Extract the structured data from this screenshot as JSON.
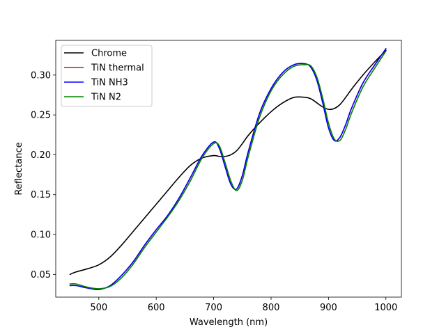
{
  "chart_data": {
    "type": "line",
    "title": "",
    "xlabel": "Wavelength (nm)",
    "ylabel": "Reflectance",
    "xlim": [
      425,
      1027
    ],
    "ylim": [
      0.0215,
      0.3435
    ],
    "xticks": [
      500,
      600,
      700,
      800,
      900,
      1000
    ],
    "yticks": [
      0.05,
      0.1,
      0.15,
      0.2,
      0.25,
      0.3
    ],
    "xtick_labels": [
      "500",
      "600",
      "700",
      "800",
      "900",
      "1000"
    ],
    "ytick_labels": [
      "0.05",
      "0.10",
      "0.15",
      "0.20",
      "0.25",
      "0.30"
    ],
    "grid": false,
    "legend_position": "upper-left",
    "x": [
      450,
      460,
      480,
      500,
      520,
      540,
      560,
      580,
      600,
      620,
      640,
      660,
      680,
      700,
      710,
      720,
      730,
      740,
      750,
      760,
      780,
      800,
      820,
      840,
      860,
      870,
      880,
      890,
      900,
      910,
      920,
      930,
      940,
      960,
      980,
      1000
    ],
    "series": [
      {
        "name": "Chrome",
        "color": "#000000",
        "values": [
          0.05,
          0.053,
          0.057,
          0.062,
          0.072,
          0.087,
          0.104,
          0.121,
          0.138,
          0.155,
          0.172,
          0.187,
          0.196,
          0.199,
          0.198,
          0.198,
          0.2,
          0.205,
          0.214,
          0.224,
          0.24,
          0.254,
          0.265,
          0.272,
          0.272,
          0.27,
          0.265,
          0.26,
          0.257,
          0.258,
          0.263,
          0.272,
          0.282,
          0.3,
          0.316,
          0.331
        ]
      },
      {
        "name": "TiN thermal",
        "color": "#ff0000",
        "values": [
          0.036,
          0.036,
          0.033,
          0.031,
          0.036,
          0.049,
          0.066,
          0.087,
          0.106,
          0.124,
          0.146,
          0.172,
          0.199,
          0.216,
          0.208,
          0.185,
          0.163,
          0.157,
          0.174,
          0.203,
          0.252,
          0.283,
          0.303,
          0.313,
          0.314,
          0.309,
          0.293,
          0.265,
          0.234,
          0.218,
          0.222,
          0.238,
          0.258,
          0.29,
          0.312,
          0.333
        ]
      },
      {
        "name": "TiN NH3",
        "color": "#0000ff",
        "values": [
          0.036,
          0.036,
          0.033,
          0.031,
          0.036,
          0.049,
          0.066,
          0.087,
          0.106,
          0.124,
          0.146,
          0.172,
          0.199,
          0.216,
          0.208,
          0.185,
          0.163,
          0.157,
          0.174,
          0.203,
          0.252,
          0.283,
          0.303,
          0.313,
          0.314,
          0.309,
          0.293,
          0.265,
          0.234,
          0.218,
          0.222,
          0.238,
          0.258,
          0.29,
          0.312,
          0.333
        ]
      },
      {
        "name": "TiN N2",
        "color": "#008000",
        "values": [
          0.038,
          0.038,
          0.034,
          0.032,
          0.035,
          0.046,
          0.063,
          0.084,
          0.103,
          0.122,
          0.143,
          0.168,
          0.196,
          0.214,
          0.211,
          0.19,
          0.167,
          0.155,
          0.168,
          0.197,
          0.247,
          0.28,
          0.3,
          0.311,
          0.313,
          0.311,
          0.297,
          0.271,
          0.24,
          0.22,
          0.218,
          0.232,
          0.252,
          0.285,
          0.308,
          0.33
        ]
      }
    ]
  }
}
